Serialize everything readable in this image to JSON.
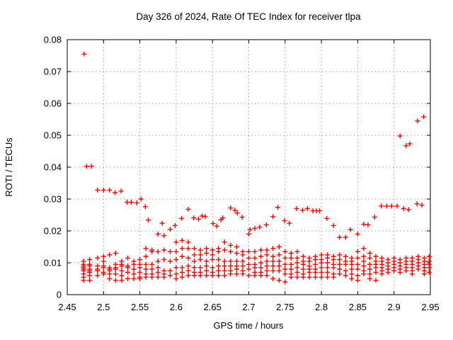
{
  "chart_data": {
    "type": "scatter",
    "title": "Day 326 of 2024, Rate Of TEC Index for receiver tlpa",
    "xlabel": "GPS time / hours",
    "ylabel": "ROTI / TECUs",
    "xlim": [
      2.45,
      2.95
    ],
    "ylim": [
      0,
      0.08
    ],
    "xtick_values": [
      2.45,
      2.5,
      2.55,
      2.6,
      2.65,
      2.7,
      2.75,
      2.8,
      2.85,
      2.9,
      2.95
    ],
    "xtick_labels": [
      "2.45",
      "2.5",
      "2.55",
      "2.6",
      "2.65",
      "2.7",
      "2.75",
      "2.8",
      "2.85",
      "2.9",
      "2.95"
    ],
    "ytick_values": [
      0,
      0.01,
      0.02,
      0.03,
      0.04,
      0.05,
      0.06,
      0.07,
      0.08
    ],
    "ytick_labels": [
      "0",
      "0.01",
      "0.02",
      "0.03",
      "0.04",
      "0.05",
      "0.06",
      "0.07",
      "0.08"
    ],
    "grid": true,
    "legend": "none",
    "marker": "plus",
    "colors": {
      "marker": "#ff0000",
      "grid": "#a0a0a0",
      "axis": "#000000",
      "background": "#ffffff"
    },
    "points": [
      [
        2.4733,
        0.0755
      ],
      [
        2.4767,
        0.0403
      ],
      [
        2.4833,
        0.0403
      ],
      [
        2.4917,
        0.0328
      ],
      [
        2.5,
        0.0328
      ],
      [
        2.5083,
        0.0328
      ],
      [
        2.5158,
        0.032
      ],
      [
        2.5242,
        0.0325
      ],
      [
        2.5325,
        0.029
      ],
      [
        2.5383,
        0.029
      ],
      [
        2.5458,
        0.0288
      ],
      [
        2.5517,
        0.03
      ],
      [
        2.5575,
        0.0276
      ],
      [
        2.5617,
        0.0234
      ],
      [
        2.5808,
        0.0224
      ],
      [
        2.5985,
        0.0217
      ],
      [
        2.6075,
        0.0239
      ],
      [
        2.6167,
        0.0268
      ],
      [
        2.6242,
        0.0241
      ],
      [
        2.6308,
        0.0237
      ],
      [
        2.6358,
        0.0247
      ],
      [
        2.64,
        0.0245
      ],
      [
        2.6508,
        0.0223
      ],
      [
        2.6558,
        0.0215
      ],
      [
        2.6617,
        0.0235
      ],
      [
        2.6642,
        0.0241
      ],
      [
        2.675,
        0.0272
      ],
      [
        2.6808,
        0.0265
      ],
      [
        2.6842,
        0.0256
      ],
      [
        2.6908,
        0.0243
      ],
      [
        2.7017,
        0.0204
      ],
      [
        2.7083,
        0.0208
      ],
      [
        2.715,
        0.0212
      ],
      [
        2.7242,
        0.0219
      ],
      [
        2.7333,
        0.0245
      ],
      [
        2.74,
        0.0274
      ],
      [
        2.7492,
        0.0232
      ],
      [
        2.7558,
        0.0224
      ],
      [
        2.7658,
        0.027
      ],
      [
        2.7742,
        0.0265
      ],
      [
        2.7808,
        0.027
      ],
      [
        2.7883,
        0.0263
      ],
      [
        2.7933,
        0.0263
      ],
      [
        2.7975,
        0.0263
      ],
      [
        2.8075,
        0.0239
      ],
      [
        2.8167,
        0.0217
      ],
      [
        2.84,
        0.0204
      ],
      [
        2.8583,
        0.0221
      ],
      [
        2.8642,
        0.0219
      ],
      [
        2.8733,
        0.0243
      ],
      [
        2.8825,
        0.0278
      ],
      [
        2.89,
        0.0278
      ],
      [
        2.8967,
        0.0278
      ],
      [
        2.9042,
        0.0278
      ],
      [
        2.9133,
        0.027
      ],
      [
        2.92,
        0.0267
      ],
      [
        2.9317,
        0.0285
      ],
      [
        2.9383,
        0.0281
      ],
      [
        2.9083,
        0.0498
      ],
      [
        2.9167,
        0.0467
      ],
      [
        2.9217,
        0.0473
      ],
      [
        2.9325,
        0.0545
      ],
      [
        2.9408,
        0.0558
      ]
    ],
    "columns": [
      [
        2.4725,
        [
          0.0105,
          0.0095,
          0.009,
          0.0085,
          0.008,
          0.0075,
          0.0065,
          0.0055,
          0.0045
        ]
      ],
      [
        2.4808,
        [
          0.011,
          0.0095,
          0.009,
          0.008,
          0.0075,
          0.007,
          0.006,
          0.0045
        ]
      ],
      [
        2.4917,
        [
          0.0115,
          0.009,
          0.008,
          0.0075,
          0.006
        ]
      ],
      [
        2.5,
        [
          0.012,
          0.0105,
          0.009,
          0.0085,
          0.007,
          0.0065
        ]
      ],
      [
        2.5083,
        [
          0.0125,
          0.0085,
          0.008,
          0.0075,
          0.0065,
          0.005
        ]
      ],
      [
        2.5167,
        [
          0.013,
          0.0095,
          0.0085,
          0.008,
          0.0065,
          0.0045
        ]
      ],
      [
        2.525,
        [
          0.0105,
          0.0095,
          0.009,
          0.0075,
          0.006,
          0.0045
        ]
      ],
      [
        2.5333,
        [
          0.0115,
          0.009,
          0.0085,
          0.007,
          0.005
        ]
      ],
      [
        2.5417,
        [
          0.0105,
          0.0095,
          0.008,
          0.0065,
          0.005
        ]
      ],
      [
        2.55,
        [
          0.011,
          0.0095,
          0.0085,
          0.007,
          0.0055,
          0.005
        ]
      ],
      [
        2.5583,
        [
          0.0145,
          0.012,
          0.0095,
          0.008,
          0.0065,
          0.0055
        ]
      ],
      [
        2.5667,
        [
          0.014,
          0.0135,
          0.0095,
          0.008,
          0.0065,
          0.0055
        ]
      ],
      [
        2.575,
        [
          0.019,
          0.0135,
          0.0105,
          0.0085,
          0.007,
          0.0055
        ]
      ],
      [
        2.5833,
        [
          0.0185,
          0.014,
          0.011,
          0.0075,
          0.0065,
          0.0055
        ]
      ],
      [
        2.5917,
        [
          0.0205,
          0.0135,
          0.0105,
          0.0075,
          0.006
        ]
      ],
      [
        2.6,
        [
          0.0165,
          0.0135,
          0.011,
          0.0085,
          0.0065,
          0.005
        ]
      ],
      [
        2.6083,
        [
          0.017,
          0.0145,
          0.012,
          0.0085,
          0.007,
          0.0055
        ]
      ],
      [
        2.6167,
        [
          0.0165,
          0.0145,
          0.0115,
          0.009,
          0.0075,
          0.006
        ]
      ],
      [
        2.625,
        [
          0.0145,
          0.0125,
          0.0105,
          0.0085,
          0.007,
          0.006
        ]
      ],
      [
        2.6333,
        [
          0.014,
          0.0125,
          0.011,
          0.0085,
          0.007,
          0.006
        ]
      ],
      [
        2.6417,
        [
          0.0145,
          0.013,
          0.0105,
          0.009,
          0.0075,
          0.006
        ]
      ],
      [
        2.65,
        [
          0.014,
          0.0125,
          0.011,
          0.0085,
          0.007,
          0.006
        ]
      ],
      [
        2.6583,
        [
          0.0145,
          0.0135,
          0.011,
          0.009,
          0.0075,
          0.006
        ]
      ],
      [
        2.6667,
        [
          0.0165,
          0.014,
          0.0105,
          0.009,
          0.0075,
          0.006
        ]
      ],
      [
        2.675,
        [
          0.0155,
          0.0135,
          0.0105,
          0.009,
          0.0075,
          0.0065
        ]
      ],
      [
        2.6833,
        [
          0.015,
          0.013,
          0.0105,
          0.009,
          0.008,
          0.0065
        ]
      ],
      [
        2.6917,
        [
          0.0135,
          0.0125,
          0.0105,
          0.009,
          0.0075,
          0.0065
        ]
      ],
      [
        2.7,
        [
          0.019,
          0.0135,
          0.0115,
          0.0095,
          0.008,
          0.006
        ]
      ],
      [
        2.7083,
        [
          0.0135,
          0.0115,
          0.0095,
          0.0085,
          0.007,
          0.006
        ]
      ],
      [
        2.7167,
        [
          0.014,
          0.012,
          0.01,
          0.0085,
          0.007,
          0.006
        ]
      ],
      [
        2.725,
        [
          0.014,
          0.0125,
          0.0105,
          0.009,
          0.0075,
          0.006
        ]
      ],
      [
        2.7333,
        [
          0.0145,
          0.012,
          0.0105,
          0.009,
          0.0075,
          0.005
        ]
      ],
      [
        2.7417,
        [
          0.015,
          0.0125,
          0.0105,
          0.009,
          0.0075,
          0.0045
        ]
      ],
      [
        2.75,
        [
          0.0135,
          0.0115,
          0.0095,
          0.008,
          0.0065,
          0.004
        ]
      ],
      [
        2.7583,
        [
          0.013,
          0.0115,
          0.0095,
          0.008,
          0.0065,
          0.0055
        ]
      ],
      [
        2.7667,
        [
          0.0135,
          0.0115,
          0.01,
          0.0085,
          0.007,
          0.0055
        ]
      ],
      [
        2.775,
        [
          0.012,
          0.0105,
          0.0095,
          0.008,
          0.0065,
          0.0055
        ]
      ],
      [
        2.7833,
        [
          0.0115,
          0.0105,
          0.009,
          0.008,
          0.007,
          0.0055
        ]
      ],
      [
        2.7917,
        [
          0.012,
          0.011,
          0.0095,
          0.008,
          0.007,
          0.0055
        ]
      ],
      [
        2.8,
        [
          0.0125,
          0.011,
          0.01,
          0.0085,
          0.007,
          0.0055
        ]
      ],
      [
        2.8083,
        [
          0.0125,
          0.0115,
          0.01,
          0.0085,
          0.007,
          0.0055
        ]
      ],
      [
        2.8167,
        [
          0.012,
          0.011,
          0.0095,
          0.0085,
          0.0065,
          0.0055
        ]
      ],
      [
        2.825,
        [
          0.018,
          0.0125,
          0.011,
          0.0095,
          0.008,
          0.0065
        ]
      ],
      [
        2.8333,
        [
          0.018,
          0.012,
          0.0105,
          0.0095,
          0.0075,
          0.006
        ]
      ],
      [
        2.8417,
        [
          0.0115,
          0.0105,
          0.0095,
          0.008,
          0.0065,
          0.005
        ]
      ],
      [
        2.85,
        [
          0.019,
          0.0135,
          0.0115,
          0.0095,
          0.008,
          0.006,
          0.0045
        ]
      ],
      [
        2.8583,
        [
          0.0145,
          0.012,
          0.0105,
          0.009,
          0.0075,
          0.0065
        ]
      ],
      [
        2.8667,
        [
          0.013,
          0.0115,
          0.0095,
          0.008,
          0.0065,
          0.005
        ]
      ],
      [
        2.875,
        [
          0.012,
          0.0105,
          0.0095,
          0.0085,
          0.007,
          0.0045
        ]
      ],
      [
        2.8833,
        [
          0.0115,
          0.0105,
          0.0095,
          0.0085,
          0.0075,
          0.0065
        ]
      ],
      [
        2.8917,
        [
          0.011,
          0.01,
          0.009,
          0.008,
          0.007
        ]
      ],
      [
        2.9,
        [
          0.0115,
          0.0105,
          0.0095,
          0.0085,
          0.0075
        ]
      ],
      [
        2.9083,
        [
          0.011,
          0.01,
          0.009,
          0.008,
          0.007
        ]
      ],
      [
        2.9167,
        [
          0.0115,
          0.0105,
          0.0095,
          0.0085,
          0.0075
        ]
      ],
      [
        2.925,
        [
          0.0115,
          0.0105,
          0.0095,
          0.0085,
          0.0075,
          0.0065
        ]
      ],
      [
        2.9333,
        [
          0.012,
          0.011,
          0.01,
          0.009,
          0.008
        ]
      ],
      [
        2.9417,
        [
          0.0115,
          0.0105,
          0.0095,
          0.0085,
          0.0075,
          0.0065
        ]
      ],
      [
        2.9483,
        [
          0.012,
          0.0105,
          0.0095,
          0.0085,
          0.007
        ]
      ]
    ]
  }
}
